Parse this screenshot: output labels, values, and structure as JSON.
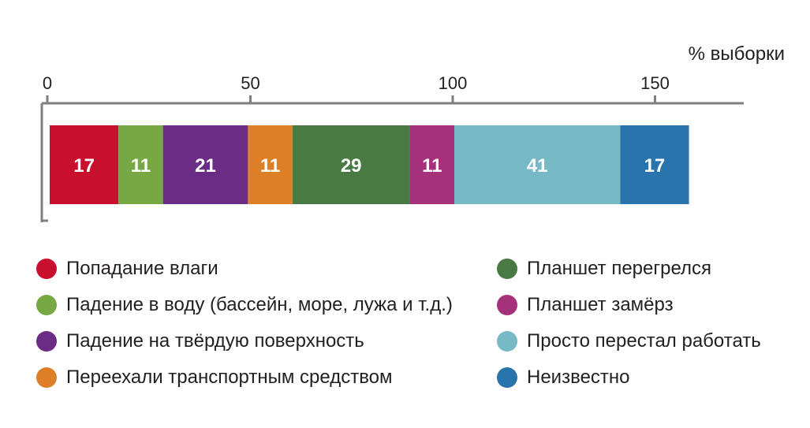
{
  "chart_data": {
    "type": "bar",
    "orientation": "horizontal-stacked",
    "unit_label": "% выборки",
    "xlim": [
      0,
      170
    ],
    "ticks": [
      0,
      50,
      100,
      150
    ],
    "grid": false,
    "legend_position": "bottom",
    "series": [
      {
        "name": "Попадание влаги",
        "value": 17,
        "color": "#c8102e"
      },
      {
        "name": "Падение в воду (бассейн, море, лужа и т.д.)",
        "value": 11,
        "color": "#78a843"
      },
      {
        "name": "Падение на твёрдую поверхность",
        "value": 21,
        "color": "#6a2c84"
      },
      {
        "name": "Переехали транспортным средством",
        "value": 11,
        "color": "#dd7f26"
      },
      {
        "name": "Планшет перегрелся",
        "value": 29,
        "color": "#4a7a43"
      },
      {
        "name": "Планшет замёрз",
        "value": 11,
        "color": "#a5317a"
      },
      {
        "name": "Просто перестал работать",
        "value": 41,
        "color": "#78b9c6"
      },
      {
        "name": "Неизвестно",
        "value": 17,
        "color": "#2a74ad"
      }
    ]
  }
}
